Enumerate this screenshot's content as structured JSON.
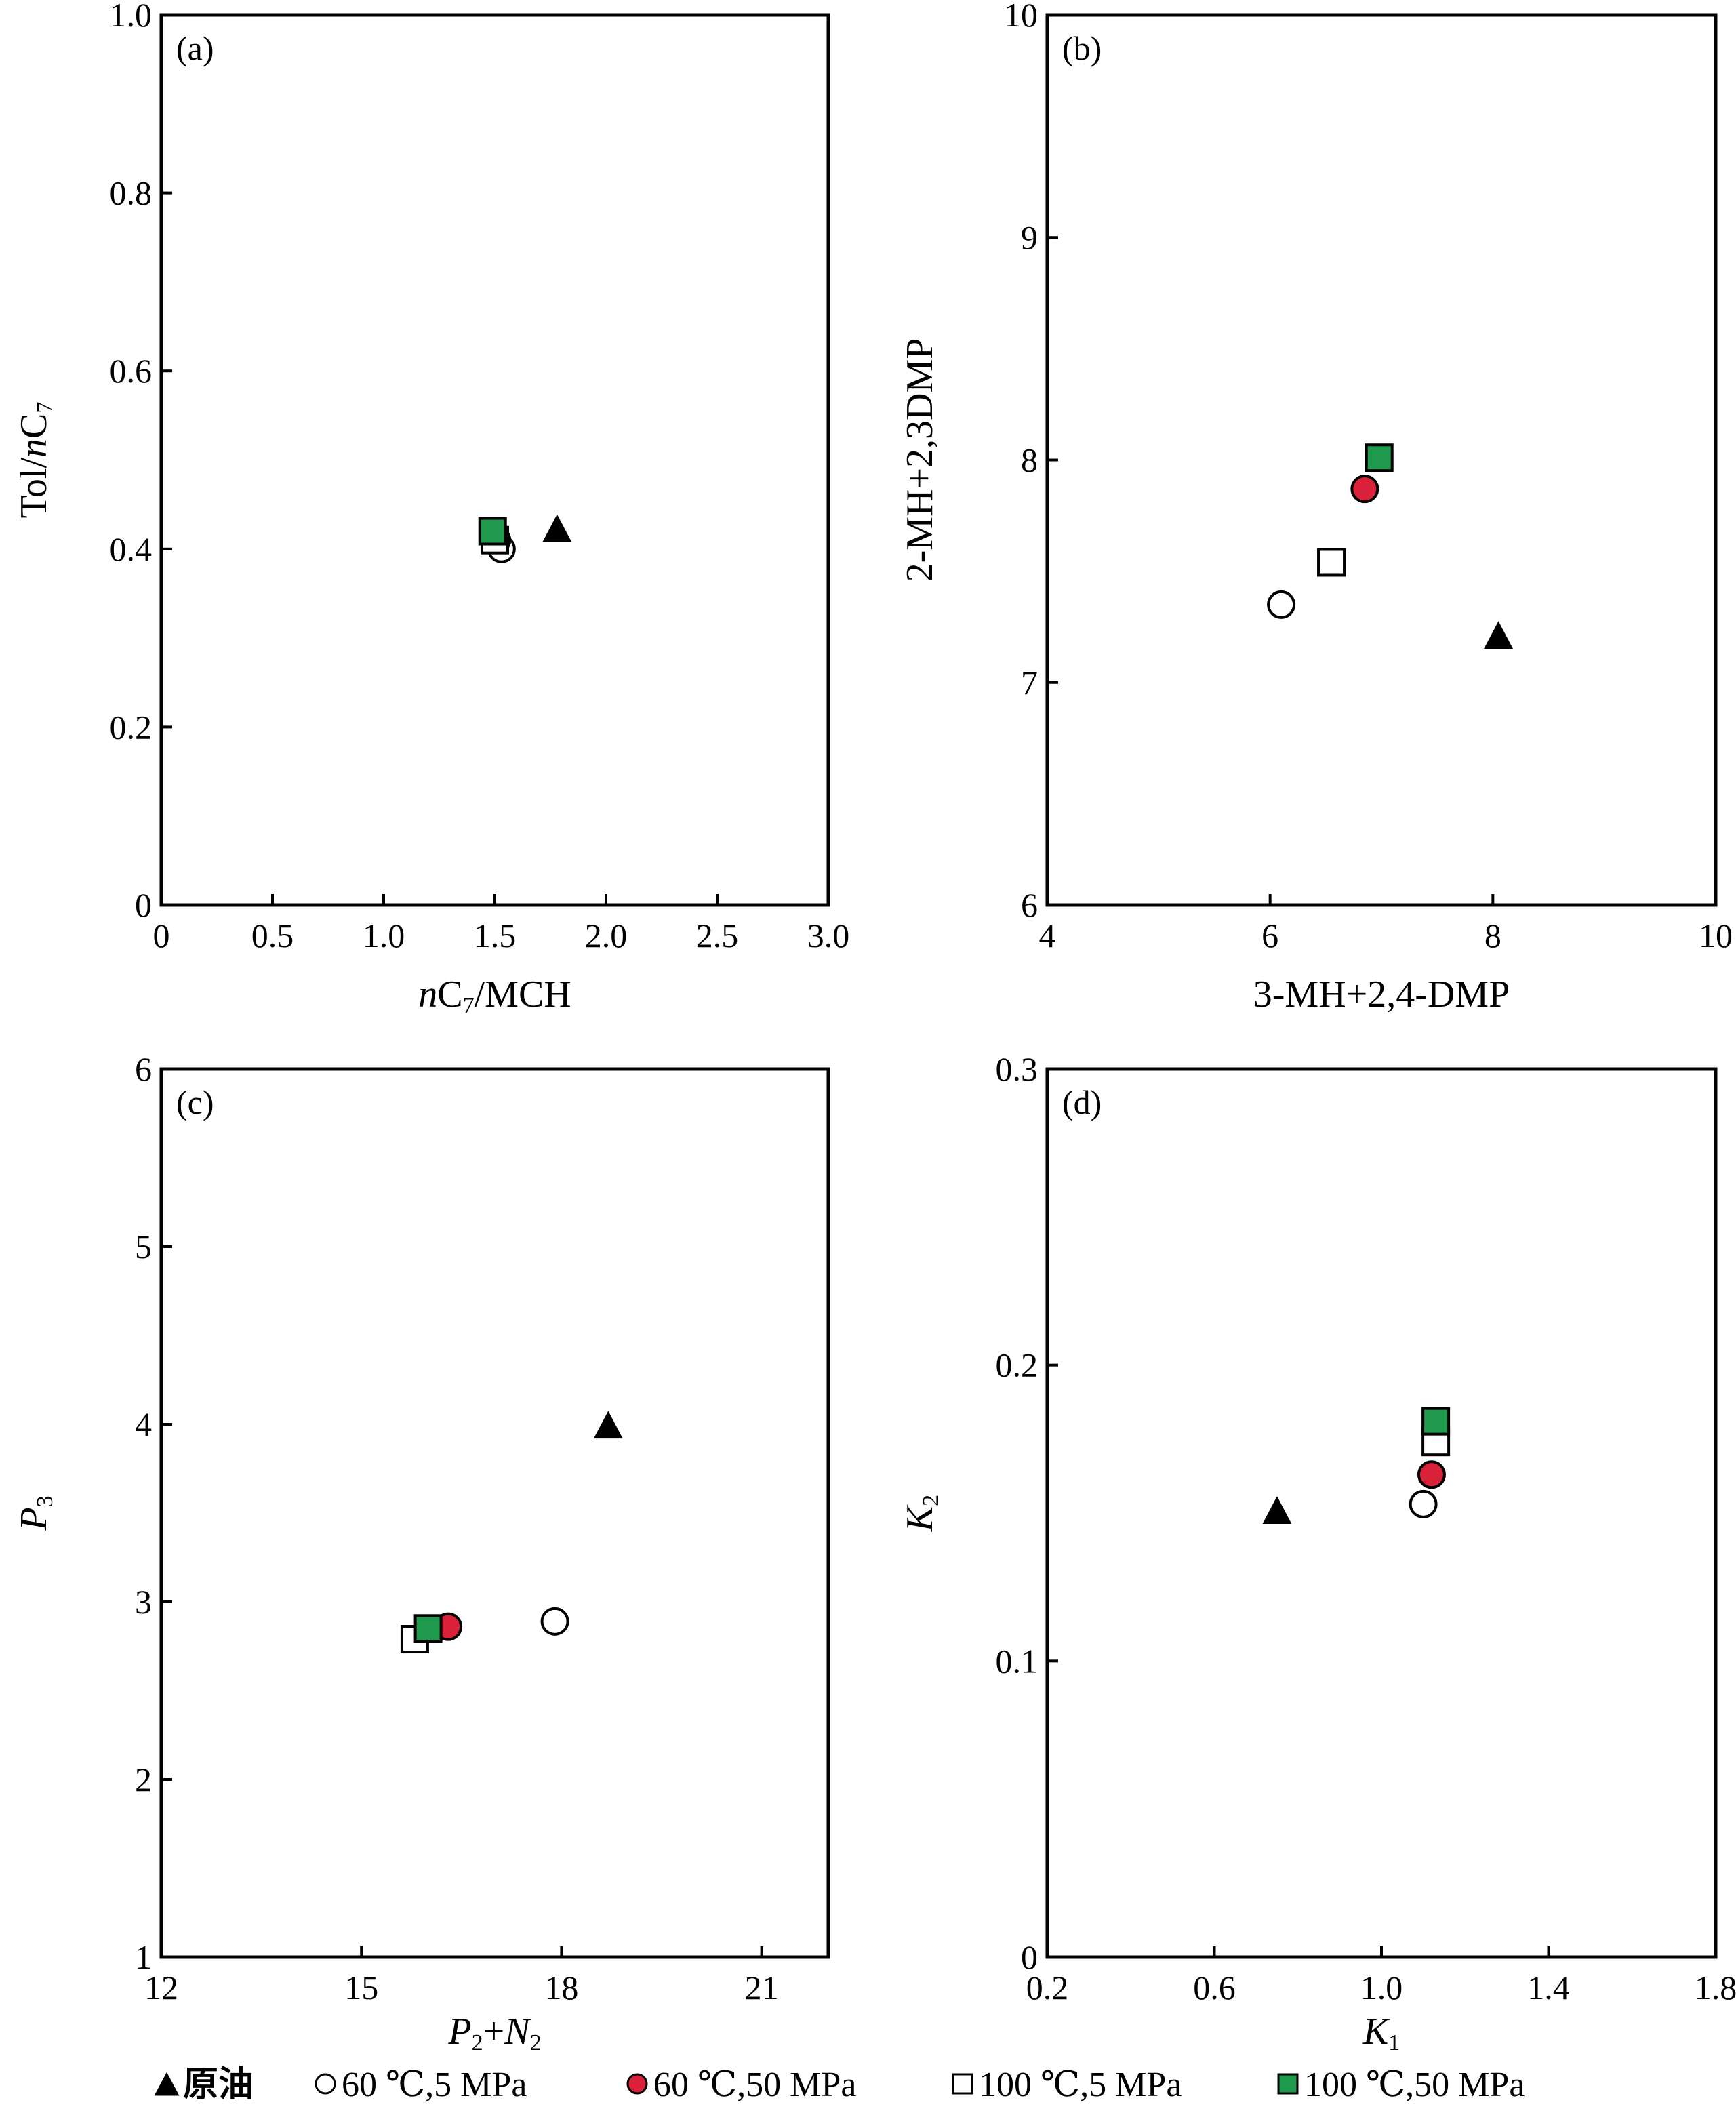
{
  "legend": {
    "items": [
      {
        "label": "原油",
        "marker": "triangle",
        "fill": "#000000"
      },
      {
        "label": "60 ℃,5 MPa",
        "marker": "circle",
        "fill": "#ffffff"
      },
      {
        "label": "60 ℃,50 MPa",
        "marker": "circle",
        "fill": "#d9213a"
      },
      {
        "label": "100 ℃,5 MPa",
        "marker": "square",
        "fill": "#ffffff"
      },
      {
        "label": "100 ℃,50 MPa",
        "marker": "square",
        "fill": "#1f9a4d"
      }
    ]
  },
  "colors": {
    "red": "#d9213a",
    "green": "#1f9a4d",
    "black": "#000000",
    "white": "#ffffff"
  },
  "chart_data": [
    {
      "panel": "(a)",
      "type": "scatter",
      "xlabel_parts": [
        {
          "t": "n",
          "italic": true
        },
        {
          "t": "C"
        },
        {
          "t": "7",
          "sub": true
        },
        {
          "t": "/MCH"
        }
      ],
      "ylabel_parts": [
        {
          "t": "Tol/"
        },
        {
          "t": "n",
          "italic": true
        },
        {
          "t": "C"
        },
        {
          "t": "7",
          "sub": true
        }
      ],
      "xlim": [
        0,
        3.0
      ],
      "ylim": [
        0,
        1.0
      ],
      "xticks": [
        0,
        0.5,
        1.0,
        1.5,
        2.0,
        2.5,
        3.0
      ],
      "xtick_labels": [
        "0",
        "0.5",
        "1.0",
        "1.5",
        "2.0",
        "2.5",
        "3.0"
      ],
      "yticks": [
        0,
        0.2,
        0.4,
        0.6,
        0.8,
        1.0
      ],
      "ytick_labels": [
        "0",
        "0.2",
        "0.4",
        "0.6",
        "0.8",
        "1.0"
      ],
      "points": [
        {
          "series": 0,
          "x": 1.78,
          "y": 0.42
        },
        {
          "series": 1,
          "x": 1.53,
          "y": 0.4
        },
        {
          "series": 2,
          "x": 1.51,
          "y": 0.41
        },
        {
          "series": 3,
          "x": 1.5,
          "y": 0.41
        },
        {
          "series": 4,
          "x": 1.49,
          "y": 0.42
        }
      ]
    },
    {
      "panel": "(b)",
      "type": "scatter",
      "xlabel_parts": [
        {
          "t": "3-MH+2,4-DMP"
        }
      ],
      "ylabel_parts": [
        {
          "t": "2-MH+2,3DMP"
        }
      ],
      "xlim": [
        4,
        10
      ],
      "ylim": [
        6,
        10
      ],
      "xticks": [
        4,
        6,
        8,
        10
      ],
      "xtick_labels": [
        "4",
        "6",
        "8",
        "10"
      ],
      "yticks": [
        6,
        7,
        8,
        9,
        10
      ],
      "ytick_labels": [
        "6",
        "7",
        "8",
        "9",
        "10"
      ],
      "points": [
        {
          "series": 0,
          "x": 8.05,
          "y": 7.2
        },
        {
          "series": 1,
          "x": 6.1,
          "y": 7.35
        },
        {
          "series": 2,
          "x": 6.85,
          "y": 7.87
        },
        {
          "series": 3,
          "x": 6.55,
          "y": 7.54
        },
        {
          "series": 4,
          "x": 6.98,
          "y": 8.01
        }
      ]
    },
    {
      "panel": "(c)",
      "type": "scatter",
      "xlabel_parts": [
        {
          "t": "P",
          "italic": true
        },
        {
          "t": "2",
          "sub": true
        },
        {
          "t": "+"
        },
        {
          "t": "N",
          "italic": true
        },
        {
          "t": "2",
          "sub": true
        }
      ],
      "ylabel_parts": [
        {
          "t": "P",
          "italic": true
        },
        {
          "t": "3",
          "sub": true
        }
      ],
      "xlim": [
        12,
        22
      ],
      "ylim": [
        1,
        6
      ],
      "xticks": [
        12,
        15,
        18,
        21
      ],
      "xtick_labels": [
        "12",
        "15",
        "18",
        "21"
      ],
      "yticks": [
        1,
        2,
        3,
        4,
        5,
        6
      ],
      "ytick_labels": [
        "1",
        "2",
        "3",
        "4",
        "5",
        "6"
      ],
      "points": [
        {
          "series": 0,
          "x": 18.7,
          "y": 3.98
        },
        {
          "series": 1,
          "x": 17.9,
          "y": 2.89
        },
        {
          "series": 2,
          "x": 16.3,
          "y": 2.86
        },
        {
          "series": 3,
          "x": 15.8,
          "y": 2.79
        },
        {
          "series": 4,
          "x": 16.0,
          "y": 2.85
        }
      ]
    },
    {
      "panel": "(d)",
      "type": "scatter",
      "xlabel_parts": [
        {
          "t": "K",
          "italic": true
        },
        {
          "t": "1",
          "sub": true
        }
      ],
      "ylabel_parts": [
        {
          "t": "K",
          "italic": true
        },
        {
          "t": "2",
          "sub": true
        }
      ],
      "xlim": [
        0.2,
        1.8
      ],
      "ylim": [
        0,
        0.3
      ],
      "xticks": [
        0.2,
        0.6,
        1.0,
        1.4,
        1.8
      ],
      "xtick_labels": [
        "0.2",
        "0.6",
        "1.0",
        "1.4",
        "1.8"
      ],
      "yticks": [
        0,
        0.1,
        0.2,
        0.3
      ],
      "ytick_labels": [
        "0",
        "0.1",
        "0.2",
        "0.3"
      ],
      "points": [
        {
          "series": 0,
          "x": 0.75,
          "y": 0.15
        },
        {
          "series": 1,
          "x": 1.1,
          "y": 0.153
        },
        {
          "series": 2,
          "x": 1.12,
          "y": 0.163
        },
        {
          "series": 3,
          "x": 1.13,
          "y": 0.174
        },
        {
          "series": 4,
          "x": 1.13,
          "y": 0.181
        }
      ]
    }
  ]
}
